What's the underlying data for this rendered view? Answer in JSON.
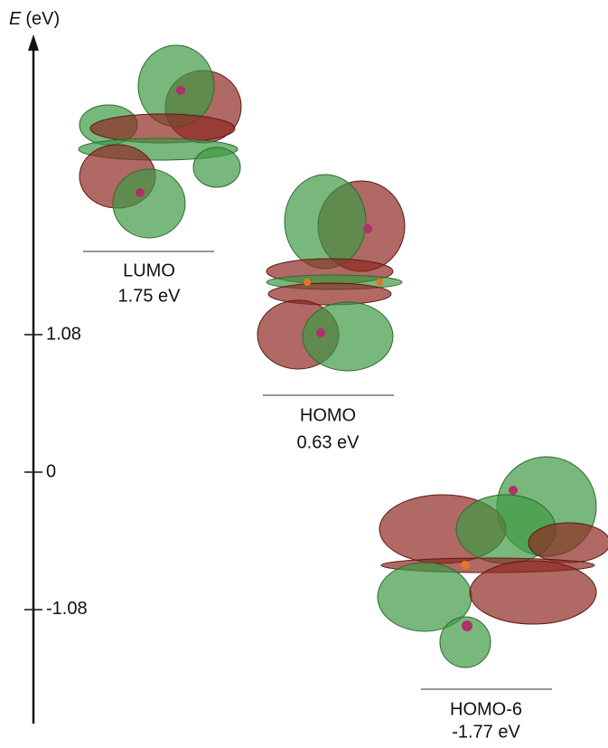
{
  "axis": {
    "symbol": "E",
    "unit": "(eV)",
    "ticks": [
      1.08,
      0,
      -1.08
    ]
  },
  "levels": [
    {
      "name": "LUMO",
      "energy": "1.75 eV"
    },
    {
      "name": "HOMO",
      "energy": "0.63 eV"
    },
    {
      "name": "HOMO-6",
      "energy": "-1.77 eV"
    }
  ]
}
